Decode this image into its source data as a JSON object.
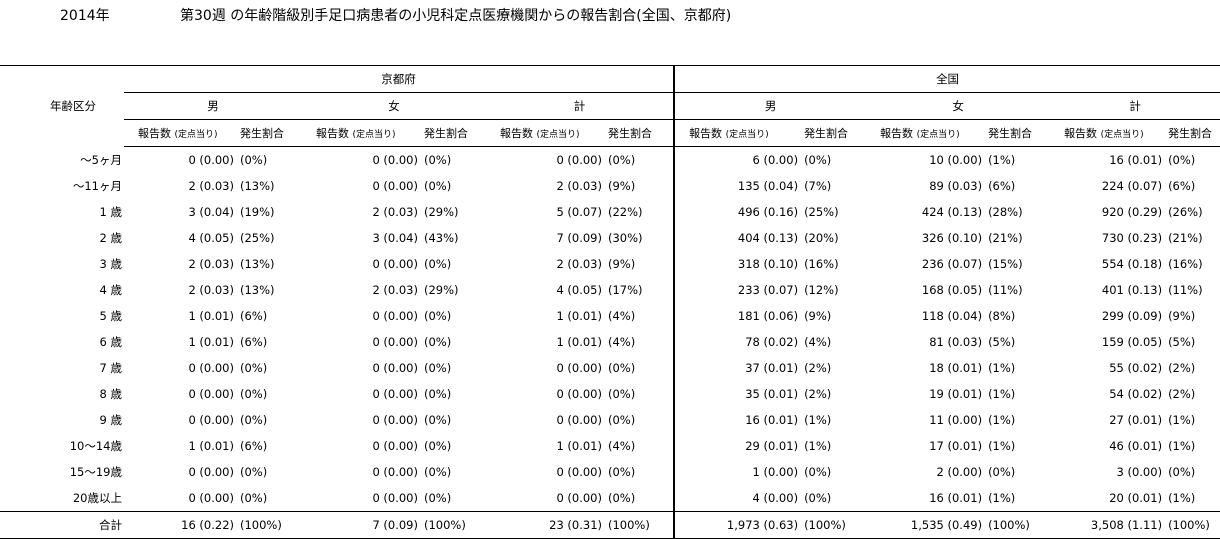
{
  "header": {
    "year": "2014年",
    "title": "第30週 の年齢階級別手足口病患者の小児科定点医療機関からの報告割合(全国、京都府)"
  },
  "columns": {
    "age_label": "年齢区分",
    "regions": [
      "京都府",
      "全国"
    ],
    "sexes": [
      "男",
      "女",
      "計"
    ],
    "count_label": "報告数",
    "per_site_label": "(定点当り)",
    "ratio_label": "発生割合"
  },
  "rows": [
    {
      "age": "～5ヶ月",
      "cells": [
        [
          "0 (0.00)",
          "(0%)"
        ],
        [
          "0 (0.00)",
          "(0%)"
        ],
        [
          "0 (0.00)",
          "(0%)"
        ],
        [
          "6 (0.00)",
          "(0%)"
        ],
        [
          "10 (0.00)",
          "(1%)"
        ],
        [
          "16 (0.01)",
          "(0%)"
        ]
      ]
    },
    {
      "age": "～11ヶ月",
      "cells": [
        [
          "2 (0.03)",
          "(13%)"
        ],
        [
          "0 (0.00)",
          "(0%)"
        ],
        [
          "2 (0.03)",
          "(9%)"
        ],
        [
          "135 (0.04)",
          "(7%)"
        ],
        [
          "89 (0.03)",
          "(6%)"
        ],
        [
          "224 (0.07)",
          "(6%)"
        ]
      ]
    },
    {
      "age": "1 歳",
      "cells": [
        [
          "3 (0.04)",
          "(19%)"
        ],
        [
          "2 (0.03)",
          "(29%)"
        ],
        [
          "5 (0.07)",
          "(22%)"
        ],
        [
          "496 (0.16)",
          "(25%)"
        ],
        [
          "424 (0.13)",
          "(28%)"
        ],
        [
          "920 (0.29)",
          "(26%)"
        ]
      ]
    },
    {
      "age": "2 歳",
      "cells": [
        [
          "4 (0.05)",
          "(25%)"
        ],
        [
          "3 (0.04)",
          "(43%)"
        ],
        [
          "7 (0.09)",
          "(30%)"
        ],
        [
          "404 (0.13)",
          "(20%)"
        ],
        [
          "326 (0.10)",
          "(21%)"
        ],
        [
          "730 (0.23)",
          "(21%)"
        ]
      ]
    },
    {
      "age": "3 歳",
      "cells": [
        [
          "2 (0.03)",
          "(13%)"
        ],
        [
          "0 (0.00)",
          "(0%)"
        ],
        [
          "2 (0.03)",
          "(9%)"
        ],
        [
          "318 (0.10)",
          "(16%)"
        ],
        [
          "236 (0.07)",
          "(15%)"
        ],
        [
          "554 (0.18)",
          "(16%)"
        ]
      ]
    },
    {
      "age": "4 歳",
      "cells": [
        [
          "2 (0.03)",
          "(13%)"
        ],
        [
          "2 (0.03)",
          "(29%)"
        ],
        [
          "4 (0.05)",
          "(17%)"
        ],
        [
          "233 (0.07)",
          "(12%)"
        ],
        [
          "168 (0.05)",
          "(11%)"
        ],
        [
          "401 (0.13)",
          "(11%)"
        ]
      ]
    },
    {
      "age": "5 歳",
      "cells": [
        [
          "1 (0.01)",
          "(6%)"
        ],
        [
          "0 (0.00)",
          "(0%)"
        ],
        [
          "1 (0.01)",
          "(4%)"
        ],
        [
          "181 (0.06)",
          "(9%)"
        ],
        [
          "118 (0.04)",
          "(8%)"
        ],
        [
          "299 (0.09)",
          "(9%)"
        ]
      ]
    },
    {
      "age": "6 歳",
      "cells": [
        [
          "1 (0.01)",
          "(6%)"
        ],
        [
          "0 (0.00)",
          "(0%)"
        ],
        [
          "1 (0.01)",
          "(4%)"
        ],
        [
          "78 (0.02)",
          "(4%)"
        ],
        [
          "81 (0.03)",
          "(5%)"
        ],
        [
          "159 (0.05)",
          "(5%)"
        ]
      ]
    },
    {
      "age": "7 歳",
      "cells": [
        [
          "0 (0.00)",
          "(0%)"
        ],
        [
          "0 (0.00)",
          "(0%)"
        ],
        [
          "0 (0.00)",
          "(0%)"
        ],
        [
          "37 (0.01)",
          "(2%)"
        ],
        [
          "18 (0.01)",
          "(1%)"
        ],
        [
          "55 (0.02)",
          "(2%)"
        ]
      ]
    },
    {
      "age": "8 歳",
      "cells": [
        [
          "0 (0.00)",
          "(0%)"
        ],
        [
          "0 (0.00)",
          "(0%)"
        ],
        [
          "0 (0.00)",
          "(0%)"
        ],
        [
          "35 (0.01)",
          "(2%)"
        ],
        [
          "19 (0.01)",
          "(1%)"
        ],
        [
          "54 (0.02)",
          "(2%)"
        ]
      ]
    },
    {
      "age": "9 歳",
      "cells": [
        [
          "0 (0.00)",
          "(0%)"
        ],
        [
          "0 (0.00)",
          "(0%)"
        ],
        [
          "0 (0.00)",
          "(0%)"
        ],
        [
          "16 (0.01)",
          "(1%)"
        ],
        [
          "11 (0.00)",
          "(1%)"
        ],
        [
          "27 (0.01)",
          "(1%)"
        ]
      ]
    },
    {
      "age": "10～14歳",
      "cells": [
        [
          "1 (0.01)",
          "(6%)"
        ],
        [
          "0 (0.00)",
          "(0%)"
        ],
        [
          "1 (0.01)",
          "(4%)"
        ],
        [
          "29 (0.01)",
          "(1%)"
        ],
        [
          "17 (0.01)",
          "(1%)"
        ],
        [
          "46 (0.01)",
          "(1%)"
        ]
      ]
    },
    {
      "age": "15～19歳",
      "cells": [
        [
          "0 (0.00)",
          "(0%)"
        ],
        [
          "0 (0.00)",
          "(0%)"
        ],
        [
          "0 (0.00)",
          "(0%)"
        ],
        [
          "1 (0.00)",
          "(0%)"
        ],
        [
          "2 (0.00)",
          "(0%)"
        ],
        [
          "3 (0.00)",
          "(0%)"
        ]
      ]
    },
    {
      "age": "20歳以上",
      "cells": [
        [
          "0 (0.00)",
          "(0%)"
        ],
        [
          "0 (0.00)",
          "(0%)"
        ],
        [
          "0 (0.00)",
          "(0%)"
        ],
        [
          "4 (0.00)",
          "(0%)"
        ],
        [
          "16 (0.01)",
          "(1%)"
        ],
        [
          "20 (0.01)",
          "(1%)"
        ]
      ]
    },
    {
      "age": "合計",
      "cells": [
        [
          "16 (0.22)",
          "(100%)"
        ],
        [
          "7 (0.09)",
          "(100%)"
        ],
        [
          "23 (0.31)",
          "(100%)"
        ],
        [
          "1,973 (0.63)",
          "(100%)"
        ],
        [
          "1,535 (0.49)",
          "(100%)"
        ],
        [
          "3,508 (1.11)",
          "(100%)"
        ]
      ]
    }
  ]
}
